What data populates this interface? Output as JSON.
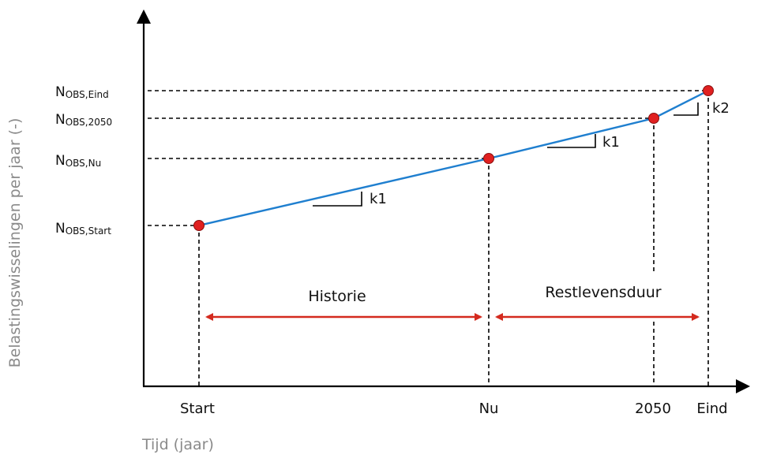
{
  "y_axis_title": "Belastingswisselingen per jaar (-)",
  "x_axis_title": "Tijd (jaar)",
  "x_ticks": {
    "start": "Start",
    "nu": "Nu",
    "y2050": "2050",
    "eind": "Eind"
  },
  "y_levels": {
    "eind": {
      "main": "N",
      "sub": "OBS,Eind"
    },
    "y2050": {
      "main": "N",
      "sub": "OBS,2050"
    },
    "nu": {
      "main": "N",
      "sub": "OBS,Nu"
    },
    "start": {
      "main": "N",
      "sub": "OBS,Start"
    }
  },
  "slope_labels": {
    "first": "k1",
    "second": "k1",
    "third": "k2"
  },
  "spans": {
    "historie": "Historie",
    "restlevensduur": "Restlevensduur"
  },
  "colors": {
    "line": "#1f7fcf",
    "points": "#e02020",
    "arrows": "#d42a1e",
    "axis": "#000000"
  }
}
